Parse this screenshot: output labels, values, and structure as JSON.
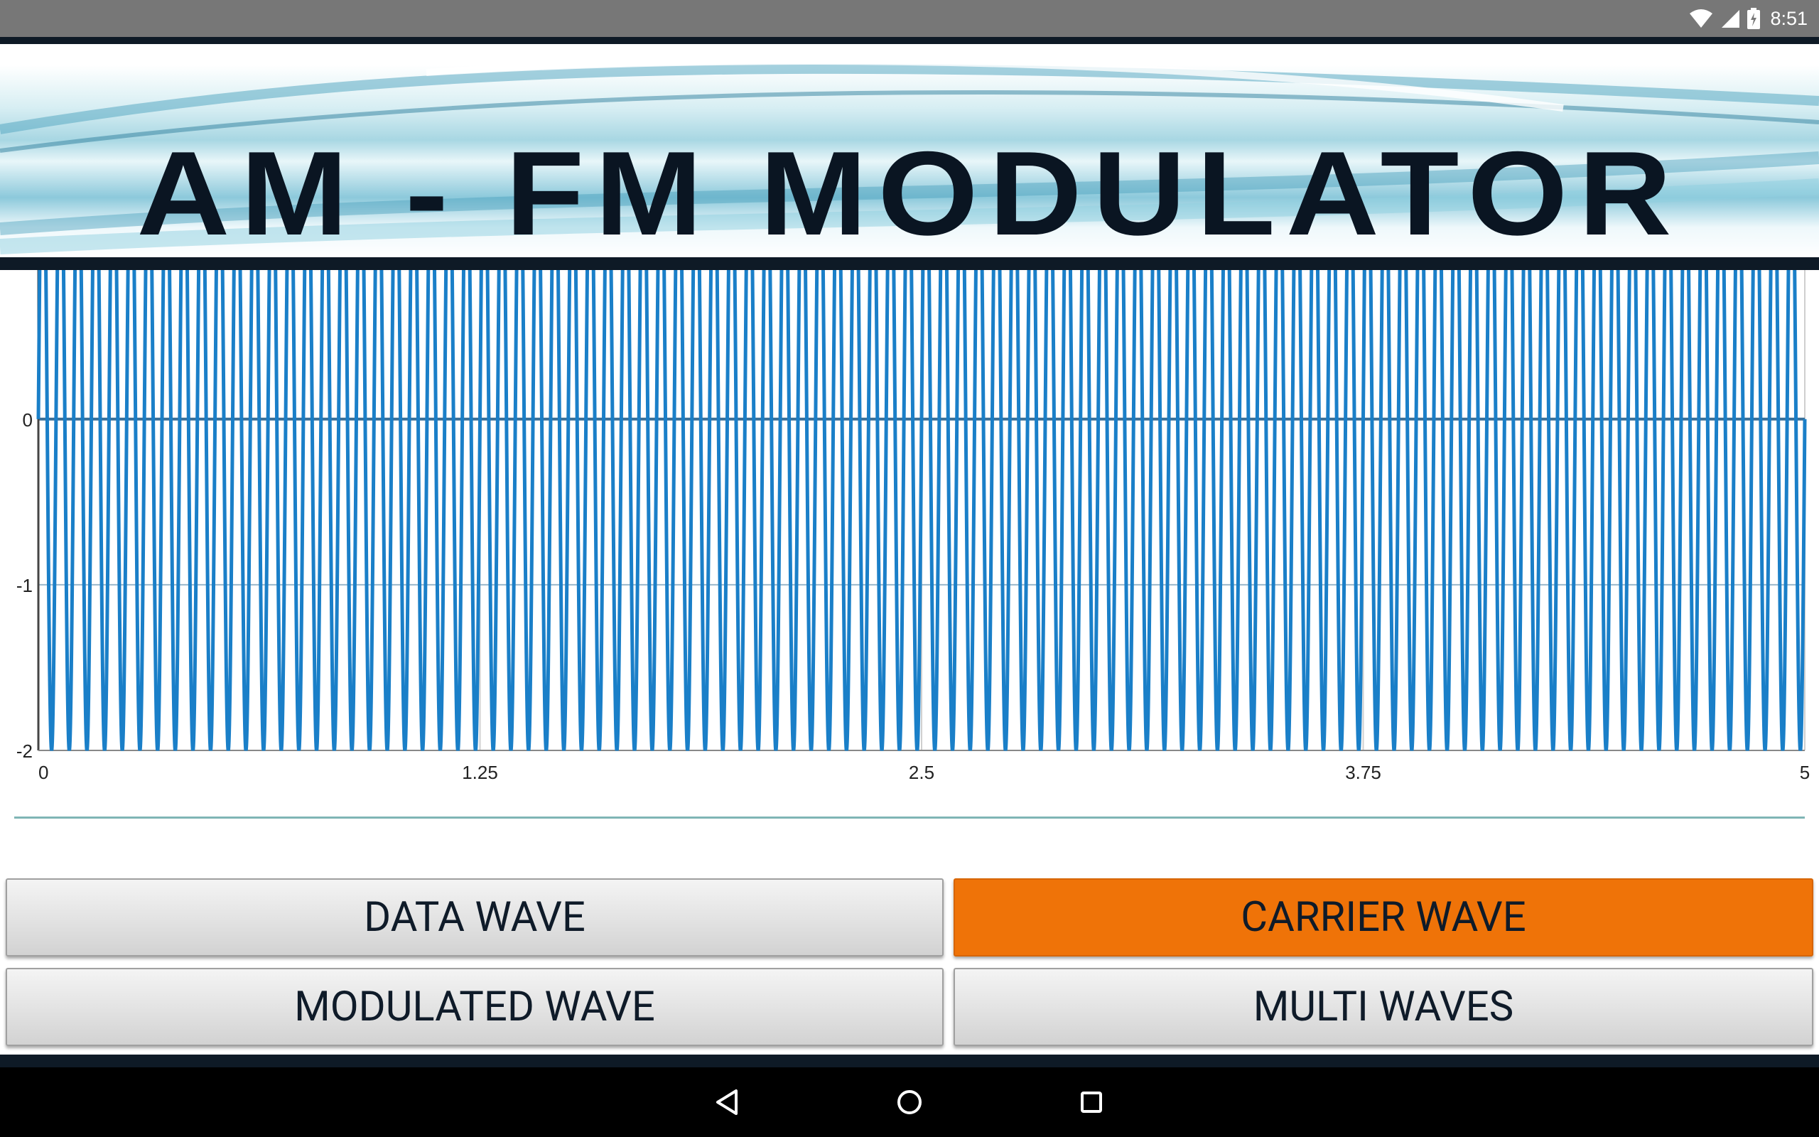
{
  "status_bar": {
    "time": "8:51",
    "icons": [
      "wifi-icon",
      "cell-signal-icon",
      "battery-charging-icon"
    ],
    "background": "#777777"
  },
  "banner": {
    "title": "AM - FM MODULATOR",
    "title_color": "#0a1522"
  },
  "chart_data": {
    "type": "line",
    "title": "",
    "xlabel": "",
    "ylabel": "",
    "xlim": [
      0,
      5
    ],
    "ylim": [
      -2,
      0.9
    ],
    "x_ticks": [
      "0",
      "1.25",
      "2.5",
      "3.75",
      "5"
    ],
    "x_tick_values": [
      0,
      1.25,
      2.5,
      3.75,
      5
    ],
    "y_ticks": [
      "-2",
      "-1",
      "0"
    ],
    "y_tick_values": [
      -2,
      -1,
      0
    ],
    "grid": true,
    "legend": "none",
    "series": [
      {
        "function": "sine",
        "amplitude": 2,
        "offset": 0,
        "frequency": 20,
        "color": "#1a7fc8"
      }
    ]
  },
  "buttons": {
    "data_wave": "DATA WAVE",
    "carrier_wave": "CARRIER WAVE",
    "modulated_wave": "MODULATED WAVE",
    "multi_waves": "MULTI WAVES",
    "active": "carrier_wave",
    "active_color": "#ef7308"
  },
  "nav_bar": {
    "icons": [
      "back-icon",
      "home-icon",
      "recent-apps-icon"
    ]
  }
}
